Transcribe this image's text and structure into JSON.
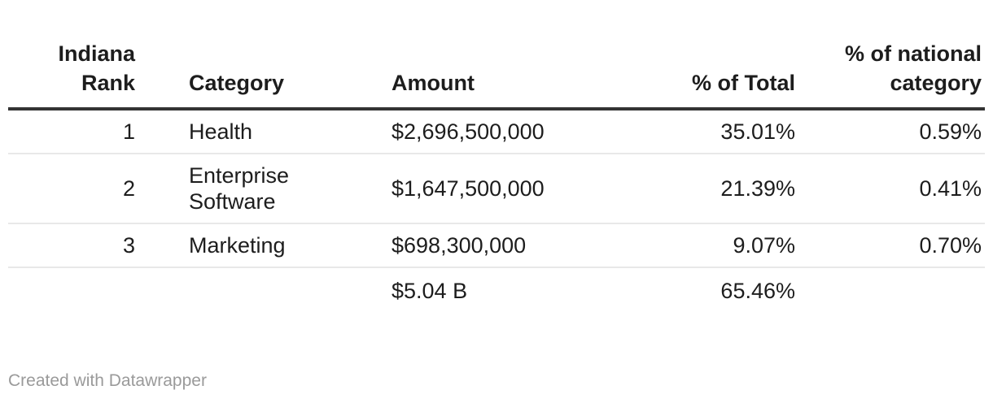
{
  "colors": {
    "background": "#ffffff",
    "text": "#1d1d1d",
    "header_border": "#333333",
    "row_border": "#e8e8e8",
    "attribution_text": "#9a9a9a"
  },
  "table": {
    "columns": [
      {
        "label": "Indiana Rank",
        "align": "right"
      },
      {
        "label": "Category",
        "align": "left"
      },
      {
        "label": "Amount",
        "align": "left"
      },
      {
        "label": "% of Total",
        "align": "right"
      },
      {
        "label": "% of national category",
        "align": "right"
      }
    ],
    "rows": [
      [
        "1",
        "Health",
        "$2,696,500,000",
        "35.01%",
        "0.59%"
      ],
      [
        "2",
        "Enterprise Software",
        "$1,647,500,000",
        "21.39%",
        "0.41%"
      ],
      [
        "3",
        "Marketing",
        "$698,300,000",
        "9.07%",
        "0.70%"
      ]
    ],
    "totals": {
      "rank": "",
      "category": "",
      "amount": "$5.04 B",
      "pct_of_total": "65.46%",
      "pct_of_national": ""
    }
  },
  "attribution": "Created with Datawrapper",
  "chart_data": {
    "type": "table",
    "title": "",
    "columns": [
      "Indiana Rank",
      "Category",
      "Amount",
      "% of Total",
      "% of national category"
    ],
    "rows": [
      [
        1,
        "Health",
        2696500000,
        35.01,
        0.59
      ],
      [
        2,
        "Enterprise Software",
        1647500000,
        21.39,
        0.41
      ],
      [
        3,
        "Marketing",
        698300000,
        9.07,
        0.7
      ]
    ],
    "totals": {
      "amount_label": "$5.04 B",
      "pct_of_total": 65.46
    },
    "layout_hints": {
      "header_rule": "thick dark bottom border",
      "row_rules": "thin light gray separators",
      "grid": "horizontal only",
      "numeric_columns_right_aligned": true
    }
  }
}
